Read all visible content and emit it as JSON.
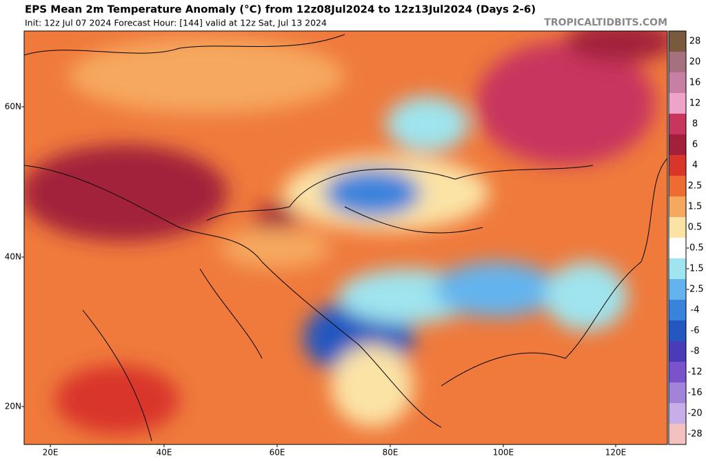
{
  "header": {
    "title": "EPS Mean 2m Temperature Anomaly (°C) from 12z08Jul2024 to 12z13Jul2024 (Days 2-6)",
    "subtitle": "Init: 12z Jul 07 2024   Forecast Hour: [144]   valid at 12z Sat, Jul 13 2024",
    "watermark": "TROPICALTIDBITS.COM"
  },
  "map": {
    "lat_labels": [
      "60N",
      "40N",
      "20N"
    ],
    "lon_labels": [
      "20E",
      "40E",
      "60E",
      "80E",
      "100E",
      "120E"
    ]
  },
  "colorbar": {
    "levels": [
      28,
      20,
      16,
      12,
      8,
      6,
      4,
      2.5,
      1.5,
      0.5,
      -0.5,
      -1.5,
      -2.5,
      -4,
      -6,
      -8,
      -12,
      -16,
      -20,
      -28
    ],
    "colors": [
      "#7a5a3e",
      "#a7707f",
      "#c87fa4",
      "#eea3c9",
      "#c8365e",
      "#a3203a",
      "#d9362a",
      "#ee6b32",
      "#f6a85f",
      "#fbe3a6",
      "#ffffff",
      "#9fe4ee",
      "#63b4ee",
      "#3a83dc",
      "#2457c0",
      "#4a3cb8",
      "#7a53cc",
      "#a184da",
      "#c8aee8",
      "#f3c2c0"
    ]
  }
}
